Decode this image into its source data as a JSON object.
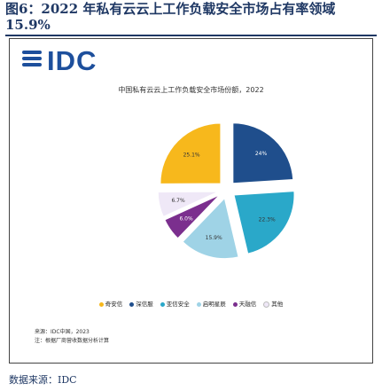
{
  "figure": {
    "title_line1": "图6：2022 年私有云云上工作负载安全市场占有率领域",
    "title_line2": "15.9%",
    "footer_source": "数据来源：IDC"
  },
  "logo": {
    "text": "IDC"
  },
  "chart_data": {
    "type": "pie",
    "title": "中国私有云云上工作负载安全市场份额，2022",
    "categories": [
      "奇安信",
      "深信服",
      "亚信安全",
      "启明星辰",
      "天融信",
      "其他"
    ],
    "values": [
      25.1,
      24.0,
      22.3,
      15.9,
      6.0,
      6.7
    ],
    "labels": [
      "25.1%",
      "24%",
      "22.3%",
      "15.9%",
      "6.0%",
      "6.7%"
    ],
    "colors": [
      "#f7b81c",
      "#1f4e8c",
      "#2aa8c9",
      "#9fd3e6",
      "#7b2f8e",
      "#efe8f7"
    ],
    "legend_position": "bottom",
    "source_lines": [
      "来源：IDC中国，2023",
      "注：根据厂商营收数据分析计算"
    ]
  },
  "legend": {
    "items": [
      {
        "label": "奇安信",
        "color": "#f7b81c"
      },
      {
        "label": "深信服",
        "color": "#1f4e8c"
      },
      {
        "label": "亚信安全",
        "color": "#2aa8c9"
      },
      {
        "label": "启明星辰",
        "color": "#9fd3e6"
      },
      {
        "label": "天融信",
        "color": "#7b2f8e"
      },
      {
        "label": "其他",
        "color": "#efe8f7"
      }
    ]
  }
}
